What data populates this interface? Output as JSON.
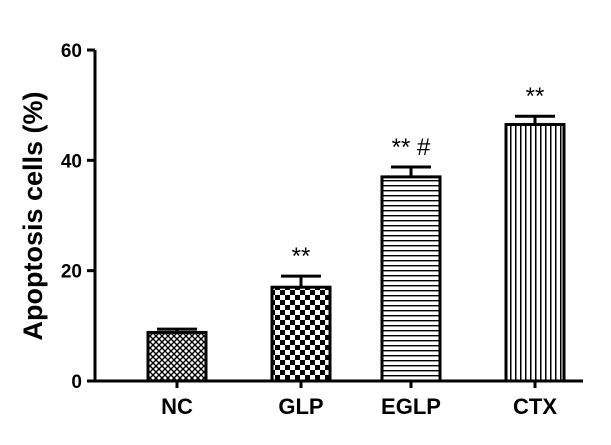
{
  "chart_data": {
    "type": "bar",
    "title": "",
    "xlabel": "",
    "ylabel": "Apoptosis cells (%)",
    "ylim": [
      0,
      60
    ],
    "yticks": [
      0,
      20,
      40,
      60
    ],
    "categories": [
      "NC",
      "GLP",
      "EGLP",
      "CTX"
    ],
    "values": [
      8.8,
      17.0,
      37.0,
      46.5
    ],
    "errors": [
      0.6,
      2.0,
      1.8,
      1.5
    ],
    "annotations": [
      "",
      "**",
      "** #",
      "**"
    ],
    "fill_patterns": [
      "crosshatch",
      "checkerboard",
      "horizontal-lines",
      "vertical-lines"
    ],
    "grid": false,
    "legend": "none"
  },
  "colors": {
    "bar_stroke": "#000000",
    "bar_fill": "#ffffff",
    "pattern": "#000000",
    "axis": "#000000"
  }
}
